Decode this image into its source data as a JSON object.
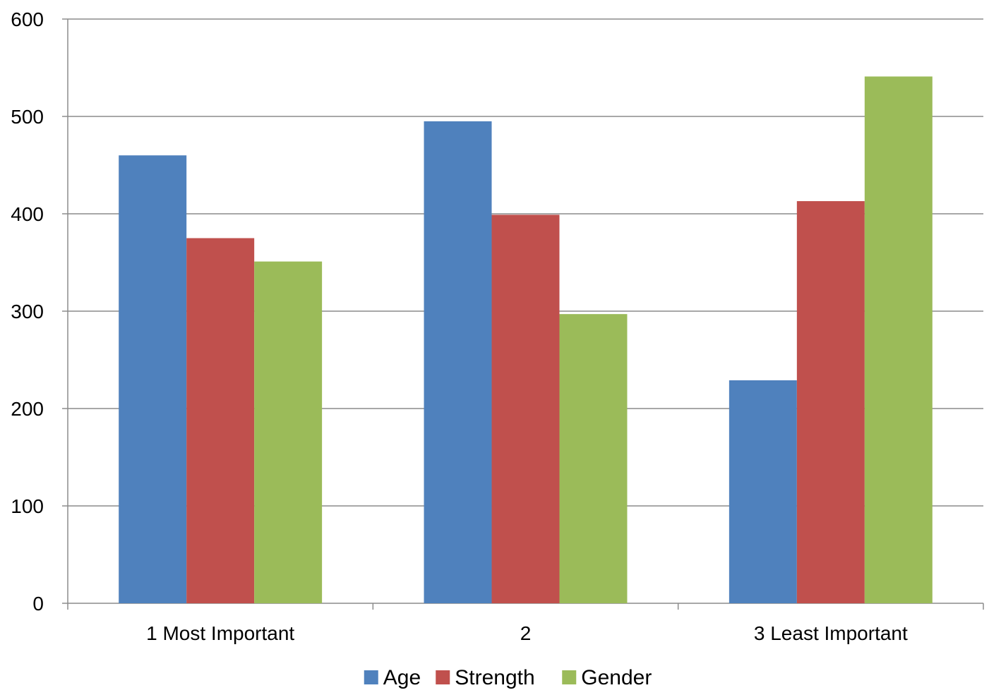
{
  "chart_data": {
    "type": "bar",
    "title": "",
    "xlabel": "",
    "ylabel": "",
    "categories": [
      "1 Most Important",
      "2",
      "3 Least Important"
    ],
    "series": [
      {
        "name": "Age",
        "color": "#4F81BD",
        "values": [
          460,
          495,
          229
        ]
      },
      {
        "name": "Strength",
        "color": "#C0504D",
        "values": [
          375,
          399,
          413
        ]
      },
      {
        "name": "Gender",
        "color": "#9BBB59",
        "values": [
          351,
          297,
          541
        ]
      }
    ],
    "ylim": [
      0,
      600
    ],
    "yticks": [
      "0",
      "100",
      "200",
      "300",
      "400",
      "500",
      "600"
    ],
    "grid": true,
    "legend_position": "bottom"
  }
}
